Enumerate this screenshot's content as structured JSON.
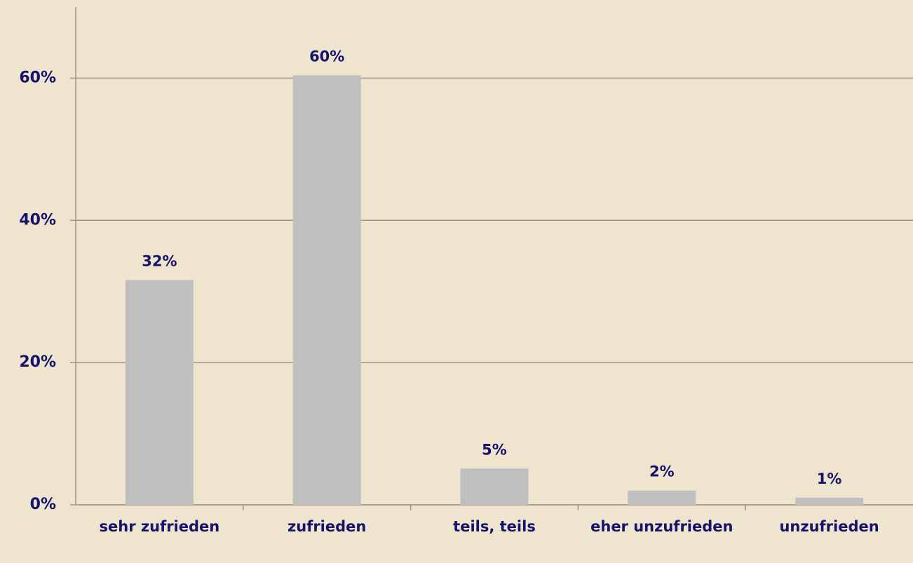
{
  "chart_data": {
    "type": "bar",
    "categories": [
      "sehr zufrieden",
      "zufrieden",
      "teils, teils",
      "eher unzufrieden",
      "unzufrieden"
    ],
    "values": [
      31.6,
      60.4,
      5.1,
      2.0,
      1.0
    ],
    "value_labels": [
      "32%",
      "60%",
      "5%",
      "2%",
      "1%"
    ],
    "color": "#bfbfbf",
    "ylim": [
      0,
      70
    ],
    "yticks": [
      {
        "value": 0,
        "label": "0%"
      },
      {
        "value": 20,
        "label": "20%"
      },
      {
        "value": 40,
        "label": "40%"
      },
      {
        "value": 60,
        "label": "60%"
      }
    ],
    "grid": true
  }
}
